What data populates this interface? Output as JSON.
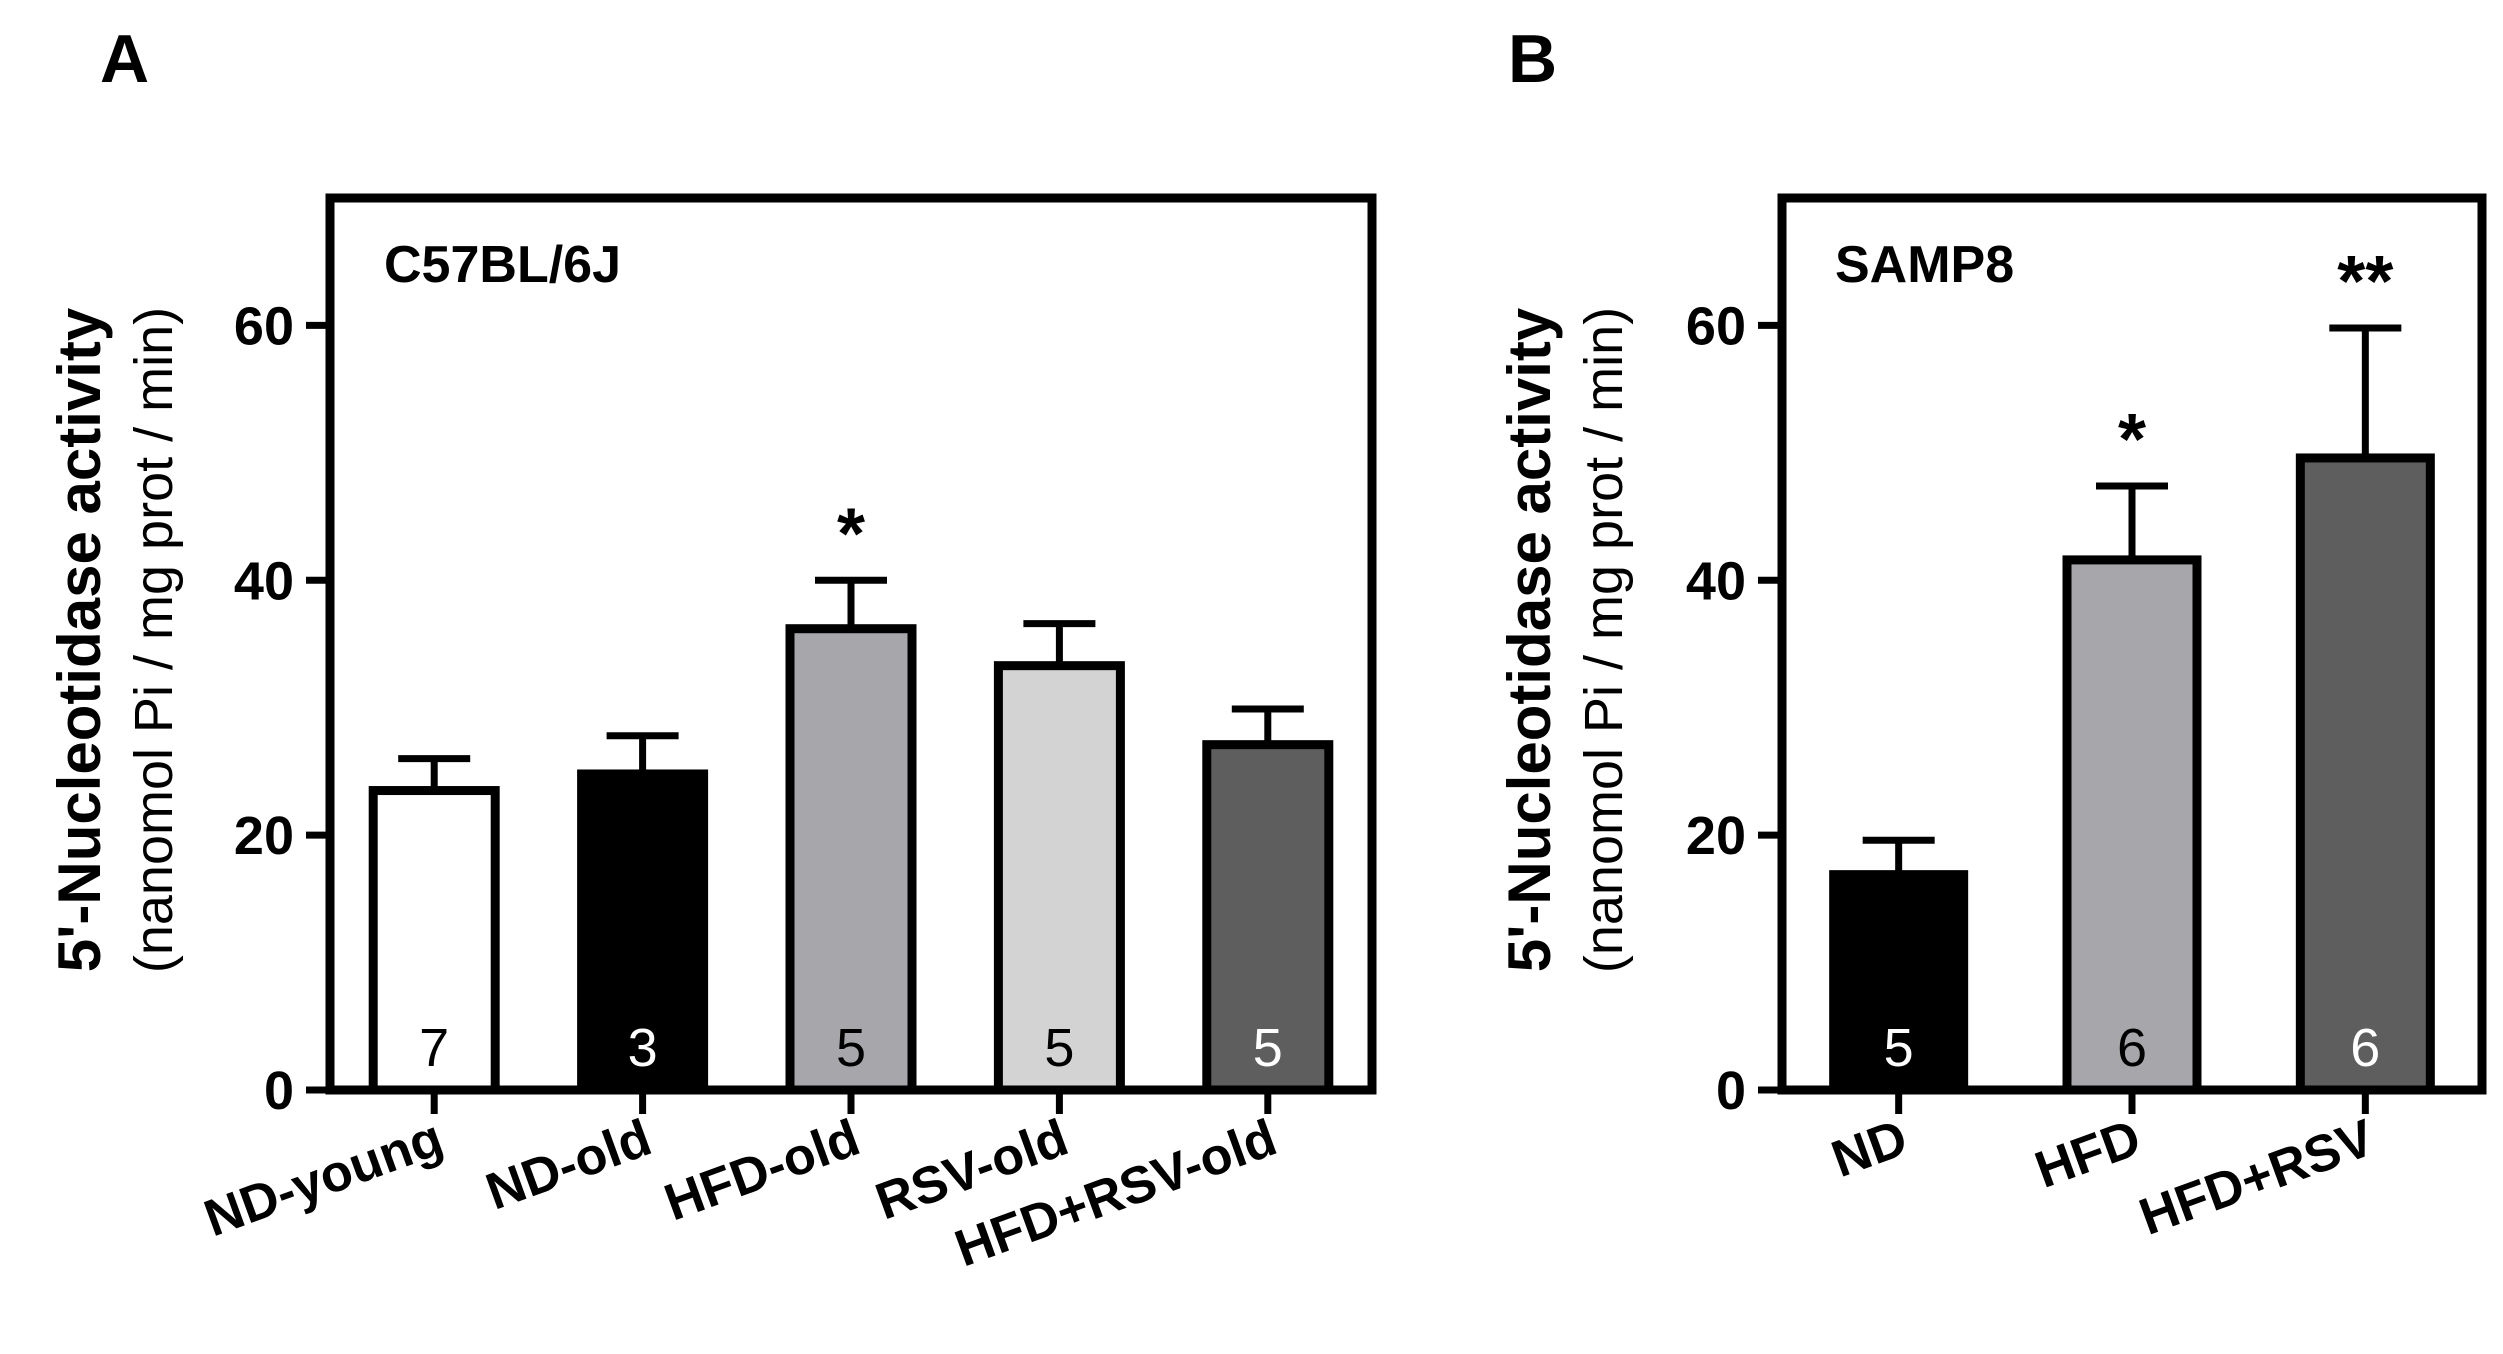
{
  "panels": [
    {
      "letter": "A",
      "strain": "C57BL/6J"
    },
    {
      "letter": "B",
      "strain": "SAMP8"
    }
  ],
  "ylabel_main": "5'-Nucleotidase activity",
  "ylabel_sub": "(nanomol Pi / mg prot / min)",
  "colors": {
    "white": "#ffffff",
    "black": "#000000",
    "mid_gray": "#a7a7ab",
    "light_gray": "#d3d3d3",
    "dark_gray": "#5e5e5e"
  },
  "chart_data": [
    {
      "type": "bar",
      "title": "C57BL/6J",
      "ylabel": "5'-Nucleotidase activity (nanomol Pi / mg prot / min)",
      "ylim": [
        0,
        70
      ],
      "yticks": [
        0,
        20,
        40,
        60
      ],
      "categories": [
        "ND-young",
        "ND-old",
        "HFD-old",
        "RSV-old",
        "HFD+RSV-old"
      ],
      "values": [
        23.5,
        24.8,
        36.2,
        33.3,
        27.1
      ],
      "errors": [
        2.5,
        3.0,
        3.8,
        3.3,
        2.8
      ],
      "n": [
        "7",
        "3",
        "5",
        "5",
        "5"
      ],
      "significance": [
        "",
        "",
        "*",
        "",
        ""
      ],
      "bar_colors": [
        "#ffffff",
        "#000000",
        "#a7a7ab",
        "#d3d3d3",
        "#5e5e5e"
      ],
      "n_label_colors": [
        "#000000",
        "#ffffff",
        "#000000",
        "#000000",
        "#ffffff"
      ],
      "grid": false
    },
    {
      "type": "bar",
      "title": "SAMP8",
      "ylabel": "5'-Nucleotidase activity (nanomol Pi / mg prot / min)",
      "ylim": [
        0,
        70
      ],
      "yticks": [
        0,
        20,
        40,
        60
      ],
      "categories": [
        "ND",
        "HFD",
        "HFD+RSV"
      ],
      "values": [
        16.9,
        41.6,
        49.6
      ],
      "errors": [
        2.7,
        5.8,
        10.2
      ],
      "n": [
        "5",
        "6",
        "6"
      ],
      "significance": [
        "",
        "*",
        "**"
      ],
      "bar_colors": [
        "#000000",
        "#a7a7ab",
        "#5e5e5e"
      ],
      "n_label_colors": [
        "#ffffff",
        "#000000",
        "#ffffff"
      ],
      "grid": false
    }
  ]
}
